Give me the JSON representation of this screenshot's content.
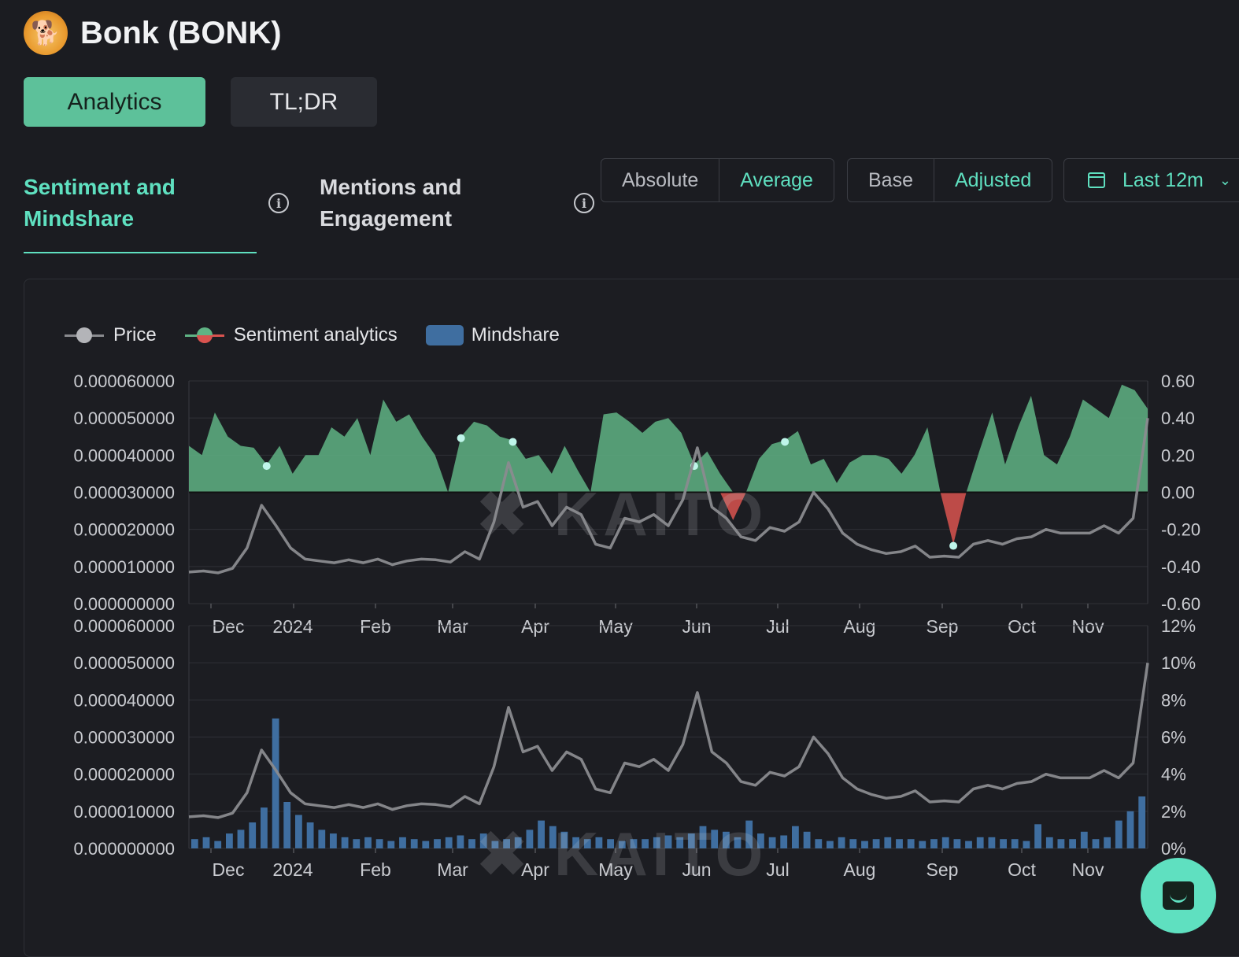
{
  "header": {
    "title": "Bonk (BONK)",
    "logo_icon": "bonk-dog-icon"
  },
  "main_tabs": [
    {
      "label": "Analytics",
      "active": true
    },
    {
      "label": "TL;DR",
      "active": false
    }
  ],
  "sub_tabs": [
    {
      "label": "Sentiment and Mindshare",
      "active": true
    },
    {
      "label": "Mentions and Engagement",
      "active": false
    }
  ],
  "toggles": {
    "mode": [
      {
        "label": "Absolute",
        "active": false
      },
      {
        "label": "Average",
        "active": true
      }
    ],
    "basis": [
      {
        "label": "Base",
        "active": false
      },
      {
        "label": "Adjusted",
        "active": true
      }
    ]
  },
  "date_range": {
    "label": "Last 12m",
    "icon": "calendar-icon"
  },
  "legend": {
    "price": "Price",
    "sentiment": "Sentiment analytics",
    "mindshare": "Mindshare"
  },
  "colors": {
    "accent": "#5fe0c0",
    "positive": "#5fb384",
    "negative": "#d9534f",
    "price": "#8a8b8f",
    "mindshare": "#3f6ea0"
  },
  "watermark": "KAITO",
  "chart_data": [
    {
      "type": "area",
      "x_ticks": [
        "Dec",
        "2024",
        "Feb",
        "Mar",
        "Apr",
        "May",
        "Jun",
        "Jul",
        "Aug",
        "Sep",
        "Oct",
        "Nov"
      ],
      "left_axis": {
        "ticks": [
          "0.000060000",
          "0.000050000",
          "0.000040000",
          "0.000030000",
          "0.000020000",
          "0.000010000",
          "0.000000000"
        ],
        "ylim": [
          0,
          6e-05
        ]
      },
      "right_axis": {
        "ticks": [
          "0.60",
          "0.40",
          "0.20",
          "0.00",
          "-0.20",
          "-0.40",
          "-0.60"
        ],
        "ylim": [
          -0.6,
          0.6
        ]
      },
      "series": [
        {
          "name": "Sentiment analytics",
          "values": [
            0.25,
            0.2,
            0.43,
            0.3,
            0.25,
            0.24,
            0.15,
            0.25,
            0.1,
            0.2,
            0.2,
            0.35,
            0.3,
            0.4,
            0.2,
            0.5,
            0.38,
            0.42,
            0.3,
            0.2,
            0.0,
            0.3,
            0.38,
            0.36,
            0.3,
            0.28,
            0.18,
            0.2,
            0.1,
            0.25,
            0.12,
            0.0,
            0.42,
            0.43,
            0.38,
            0.32,
            0.38,
            0.4,
            0.32,
            0.15,
            0.22,
            0.1,
            -0.15,
            0.0,
            0.18,
            0.26,
            0.28,
            0.33,
            0.15,
            0.18,
            0.05,
            0.16,
            0.2,
            0.2,
            0.18,
            0.1,
            0.2,
            0.35,
            0.0,
            -0.28,
            0.0,
            0.22,
            0.43,
            0.15,
            0.35,
            0.52,
            0.2,
            0.15,
            0.3,
            0.5,
            0.45,
            0.4,
            0.58,
            0.55,
            0.45
          ]
        },
        {
          "name": "Price",
          "values": [
            8.5e-06,
            8.8e-06,
            8.3e-06,
            9.5e-06,
            1.5e-05,
            2.65e-05,
            2.1e-05,
            1.5e-05,
            1.2e-05,
            1.15e-05,
            1.1e-05,
            1.18e-05,
            1.1e-05,
            1.2e-05,
            1.05e-05,
            1.15e-05,
            1.2e-05,
            1.18e-05,
            1.12e-05,
            1.4e-05,
            1.2e-05,
            2.2e-05,
            3.8e-05,
            2.6e-05,
            2.75e-05,
            2.1e-05,
            2.6e-05,
            2.4e-05,
            1.6e-05,
            1.5e-05,
            2.3e-05,
            2.2e-05,
            2.4e-05,
            2.1e-05,
            2.8e-05,
            4.2e-05,
            2.6e-05,
            2.3e-05,
            1.8e-05,
            1.7e-05,
            2.05e-05,
            1.95e-05,
            2.2e-05,
            3e-05,
            2.55e-05,
            1.9e-05,
            1.6e-05,
            1.45e-05,
            1.35e-05,
            1.4e-05,
            1.55e-05,
            1.25e-05,
            1.28e-05,
            1.25e-05,
            1.6e-05,
            1.7e-05,
            1.6e-05,
            1.75e-05,
            1.8e-05,
            2e-05,
            1.9e-05,
            1.9e-05,
            1.9e-05,
            2.1e-05,
            1.9e-05,
            2.3e-05,
            5e-05
          ]
        }
      ]
    },
    {
      "type": "bar",
      "x_ticks": [
        "Dec",
        "2024",
        "Feb",
        "Mar",
        "Apr",
        "May",
        "Jun",
        "Jul",
        "Aug",
        "Sep",
        "Oct",
        "Nov"
      ],
      "left_axis": {
        "ticks": [
          "0.000060000",
          "0.000050000",
          "0.000040000",
          "0.000030000",
          "0.000020000",
          "0.000010000",
          "0.000000000"
        ],
        "ylim": [
          0,
          6e-05
        ]
      },
      "right_axis": {
        "ticks": [
          "12%",
          "10%",
          "8%",
          "6%",
          "4%",
          "2%",
          "0%"
        ],
        "ylim": [
          0,
          12
        ]
      },
      "series": [
        {
          "name": "Mindshare",
          "values": [
            0.5,
            0.6,
            0.4,
            0.8,
            1.0,
            1.4,
            2.2,
            7.0,
            2.5,
            1.8,
            1.4,
            1.0,
            0.8,
            0.6,
            0.5,
            0.6,
            0.5,
            0.4,
            0.6,
            0.5,
            0.4,
            0.5,
            0.6,
            0.7,
            0.5,
            0.8,
            0.4,
            0.5,
            0.6,
            1.0,
            1.5,
            1.2,
            0.9,
            0.6,
            0.5,
            0.6,
            0.5,
            0.4,
            0.5,
            0.5,
            0.6,
            0.7,
            0.6,
            0.8,
            1.2,
            1.0,
            0.9,
            0.6,
            1.5,
            0.8,
            0.6,
            0.7,
            1.2,
            0.9,
            0.5,
            0.4,
            0.6,
            0.5,
            0.4,
            0.5,
            0.6,
            0.5,
            0.5,
            0.4,
            0.5,
            0.6,
            0.5,
            0.4,
            0.6,
            0.6,
            0.5,
            0.5,
            0.4,
            1.3,
            0.6,
            0.5,
            0.5,
            0.9,
            0.5,
            0.6,
            1.5,
            2.0,
            2.8
          ]
        },
        {
          "name": "Price",
          "values": [
            8.5e-06,
            8.8e-06,
            8.3e-06,
            9.5e-06,
            1.5e-05,
            2.65e-05,
            2.1e-05,
            1.5e-05,
            1.2e-05,
            1.15e-05,
            1.1e-05,
            1.18e-05,
            1.1e-05,
            1.2e-05,
            1.05e-05,
            1.15e-05,
            1.2e-05,
            1.18e-05,
            1.12e-05,
            1.4e-05,
            1.2e-05,
            2.2e-05,
            3.8e-05,
            2.6e-05,
            2.75e-05,
            2.1e-05,
            2.6e-05,
            2.4e-05,
            1.6e-05,
            1.5e-05,
            2.3e-05,
            2.2e-05,
            2.4e-05,
            2.1e-05,
            2.8e-05,
            4.2e-05,
            2.6e-05,
            2.3e-05,
            1.8e-05,
            1.7e-05,
            2.05e-05,
            1.95e-05,
            2.2e-05,
            3e-05,
            2.55e-05,
            1.9e-05,
            1.6e-05,
            1.45e-05,
            1.35e-05,
            1.4e-05,
            1.55e-05,
            1.25e-05,
            1.28e-05,
            1.25e-05,
            1.6e-05,
            1.7e-05,
            1.6e-05,
            1.75e-05,
            1.8e-05,
            2e-05,
            1.9e-05,
            1.9e-05,
            1.9e-05,
            2.1e-05,
            1.9e-05,
            2.3e-05,
            5e-05
          ]
        }
      ]
    }
  ]
}
